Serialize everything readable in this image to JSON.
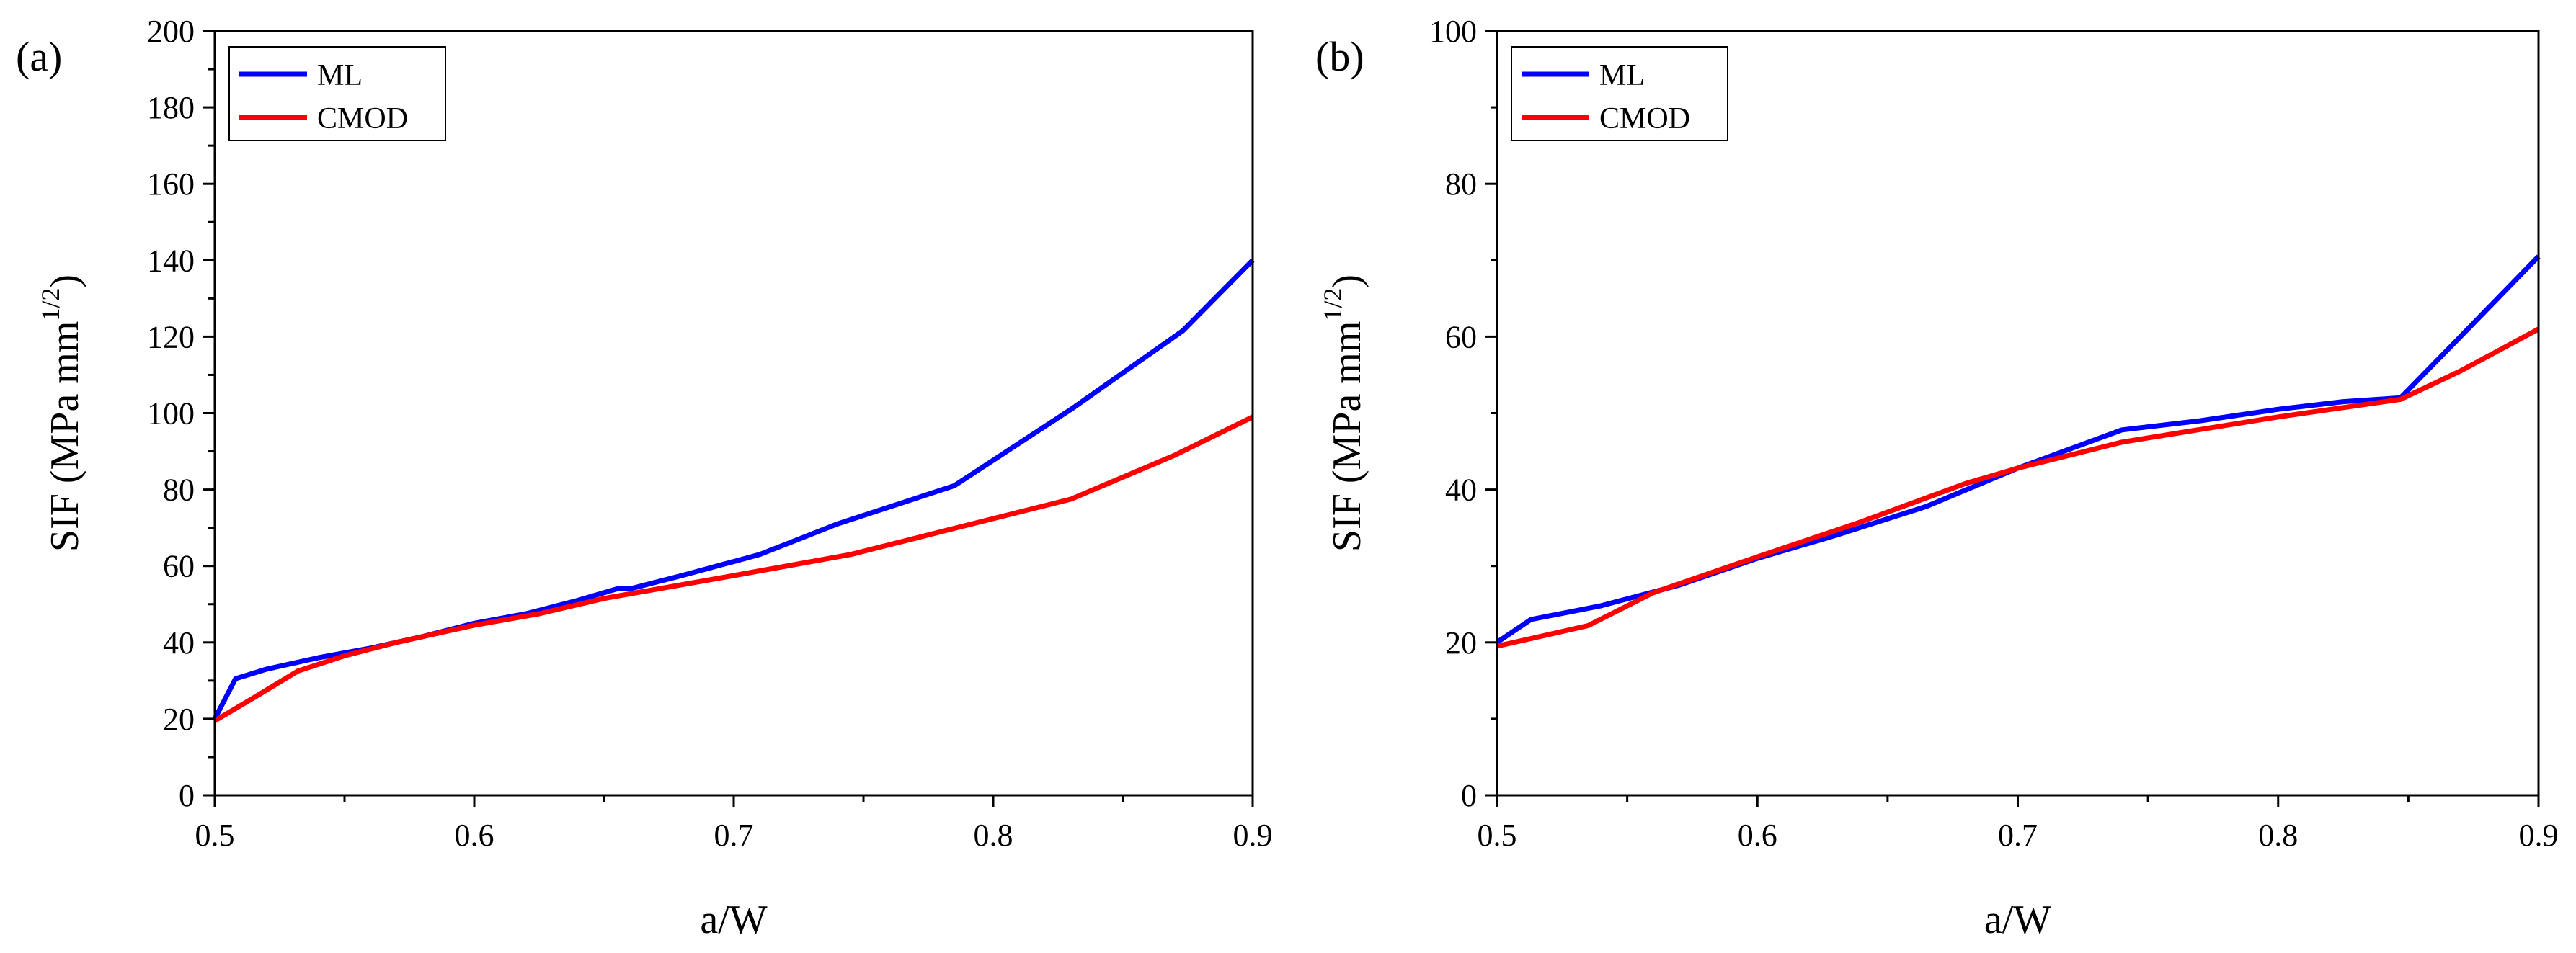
{
  "chart_data": [
    {
      "panel": "(a)",
      "type": "line",
      "title": "",
      "xlabel": "a/W",
      "ylabel": "SIF (MPa mm",
      "ylabel_sup": "1/2",
      "ylabel_close": ")",
      "xlim": [
        0.5,
        0.9
      ],
      "ylim": [
        0,
        200
      ],
      "xticks": [
        "0.5",
        "0.6",
        "0.7",
        "0.8",
        "0.9"
      ],
      "yticks": [
        "0",
        "20",
        "40",
        "60",
        "80",
        "100",
        "120",
        "140",
        "160",
        "180",
        "200"
      ],
      "legend_position": "top-left",
      "grid": false,
      "series": [
        {
          "name": "ML",
          "color": "#0000ff",
          "x": [
            0.5,
            0.508,
            0.52,
            0.54,
            0.56,
            0.58,
            0.6,
            0.62,
            0.64,
            0.655,
            0.66,
            0.68,
            0.71,
            0.74,
            0.785,
            0.83,
            0.873,
            0.9
          ],
          "y": [
            20,
            30.5,
            33,
            36,
            38.5,
            41.5,
            45,
            47.5,
            51,
            54,
            54,
            57.5,
            63,
            71,
            81,
            101,
            121.5,
            140
          ]
        },
        {
          "name": "CMOD",
          "color": "#ff0000",
          "x": [
            0.5,
            0.515,
            0.532,
            0.55,
            0.57,
            0.6,
            0.625,
            0.65,
            0.7,
            0.745,
            0.78,
            0.83,
            0.87,
            0.9
          ],
          "y": [
            19.5,
            25.5,
            32.5,
            36.5,
            40,
            44.5,
            47.5,
            51.5,
            57.5,
            63,
            69,
            77.5,
            89,
            99
          ]
        }
      ]
    },
    {
      "panel": "(b)",
      "type": "line",
      "title": "",
      "xlabel": "a/W",
      "ylabel": "SIF (MPa mm",
      "ylabel_sup": "1/2",
      "ylabel_close": ")",
      "xlim": [
        0.5,
        0.9
      ],
      "ylim": [
        0,
        100
      ],
      "xticks": [
        "0.5",
        "0.6",
        "0.7",
        "0.8",
        "0.9"
      ],
      "yticks": [
        "0",
        "20",
        "40",
        "60",
        "80",
        "100"
      ],
      "legend_position": "top-left",
      "grid": false,
      "series": [
        {
          "name": "ML",
          "color": "#0000ff",
          "x": [
            0.5,
            0.513,
            0.54,
            0.57,
            0.6,
            0.63,
            0.665,
            0.7,
            0.74,
            0.77,
            0.8,
            0.825,
            0.847,
            0.87,
            0.9
          ],
          "y": [
            20,
            23,
            24.8,
            27.5,
            31,
            34,
            37.8,
            42.8,
            47.8,
            49,
            50.5,
            51.5,
            52,
            60,
            70.5
          ]
        },
        {
          "name": "CMOD",
          "color": "#ff0000",
          "x": [
            0.5,
            0.513,
            0.535,
            0.56,
            0.6,
            0.64,
            0.68,
            0.7,
            0.74,
            0.8,
            0.847,
            0.87,
            0.9
          ],
          "y": [
            19.5,
            20.5,
            22.2,
            26.5,
            31.2,
            35.8,
            40.8,
            42.8,
            46.2,
            49.5,
            51.8,
            55.5,
            61
          ]
        }
      ]
    }
  ]
}
